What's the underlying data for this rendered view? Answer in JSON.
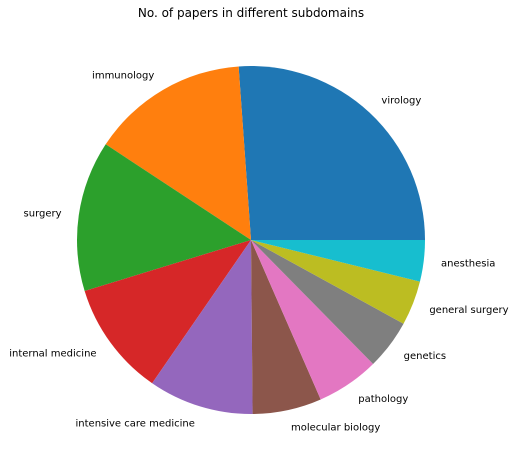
{
  "chart_data": {
    "type": "pie",
    "title": "No. of papers in different subdomains",
    "start_angle_deg": 0,
    "direction": "counterclockwise",
    "legend": "none",
    "categories": [
      "virology",
      "immunology",
      "surgery",
      "internal medicine",
      "intensive care medicine",
      "molecular biology",
      "pathology",
      "genetics",
      "general surgery",
      "anesthesia"
    ],
    "values": [
      26.5,
      14.8,
      14.2,
      10.8,
      9.9,
      6.5,
      5.9,
      4.7,
      4.2,
      3.9
    ],
    "colors": [
      "#1f77b4",
      "#ff7f0e",
      "#2ca02c",
      "#d62728",
      "#9467bd",
      "#8c564b",
      "#e377c2",
      "#7f7f7f",
      "#bcbd22",
      "#17becf"
    ]
  }
}
